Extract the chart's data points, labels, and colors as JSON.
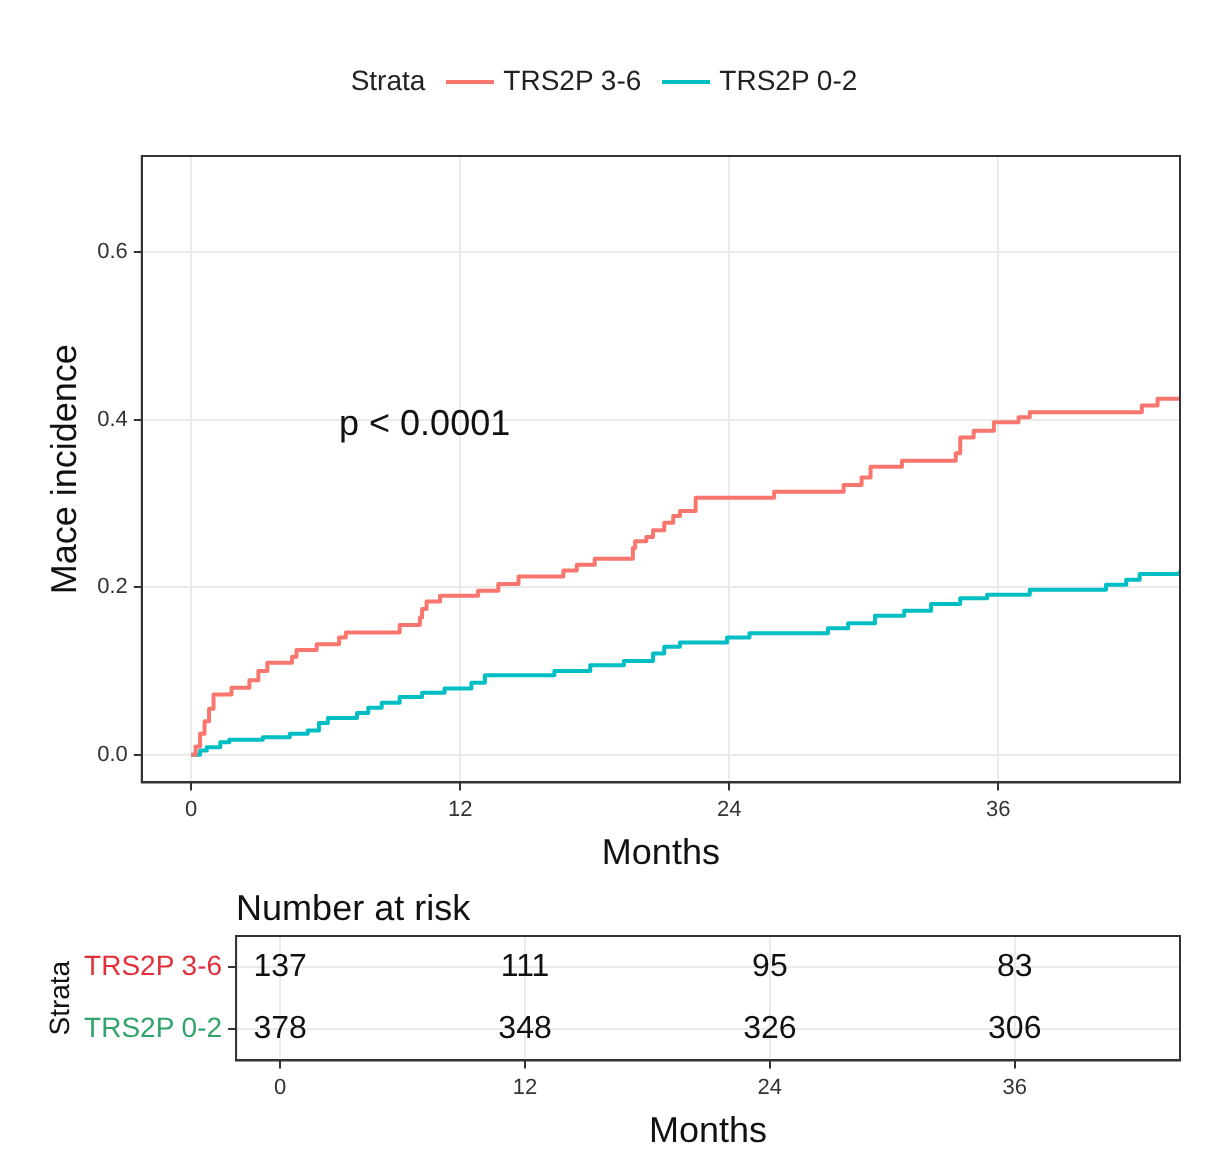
{
  "chart_data": [
    {
      "type": "step",
      "xlabel": "Months",
      "ylabel": "Mace incidence",
      "legend_title": "Strata",
      "legend": "top",
      "grid": true,
      "xlim": [
        -2.2,
        44.1
      ],
      "xticks": [
        0,
        12,
        24,
        36
      ],
      "ylim": [
        -0.033,
        0.715
      ],
      "yticks": [
        {
          "value": 0,
          "label": "0.0"
        },
        {
          "value": 0.2,
          "label": "0.2"
        },
        {
          "value": 0.4,
          "label": "0.4"
        },
        {
          "value": 0.6,
          "label": "0.6"
        }
      ],
      "annotations": [
        "p < 0.0001"
      ],
      "series": [
        {
          "name": "TRS2P 3-6",
          "color": "#f8766d",
          "x": [
            0,
            0.2,
            0.4,
            0.6,
            0.8,
            1.0,
            1.8,
            2.6,
            3.0,
            3.4,
            4.5,
            4.7,
            5.6,
            6.6,
            6.9,
            9.3,
            10.2,
            10.3,
            10.5,
            11.1,
            12.8,
            13.7,
            14.6,
            16.6,
            17.2,
            18.0,
            19.7,
            19.8,
            20.3,
            20.6,
            21.1,
            21.5,
            21.8,
            22.5,
            26.0,
            29.1,
            29.9,
            30.3,
            31.7,
            34.1,
            34.3,
            34.9,
            35.8,
            36.9,
            37.4,
            42.4,
            43.1,
            44.1
          ],
          "values": [
            0,
            0.01,
            0.025,
            0.04,
            0.055,
            0.072,
            0.08,
            0.089,
            0.1,
            0.11,
            0.117,
            0.125,
            0.132,
            0.14,
            0.146,
            0.155,
            0.164,
            0.174,
            0.183,
            0.19,
            0.196,
            0.204,
            0.213,
            0.22,
            0.227,
            0.234,
            0.247,
            0.255,
            0.26,
            0.268,
            0.277,
            0.285,
            0.291,
            0.307,
            0.314,
            0.322,
            0.331,
            0.344,
            0.351,
            0.36,
            0.379,
            0.387,
            0.397,
            0.403,
            0.409,
            0.417,
            0.425,
            0.425
          ]
        },
        {
          "name": "TRS2P 0-2",
          "color": "#00bfc4",
          "x": [
            0,
            0.4,
            0.7,
            1.3,
            1.7,
            3.2,
            4.4,
            5.2,
            5.7,
            6.1,
            7.4,
            7.9,
            8.5,
            9.3,
            10.3,
            11.3,
            12.5,
            13.1,
            16.2,
            17.8,
            19.3,
            20.6,
            21.1,
            21.8,
            23.9,
            24.9,
            28.4,
            29.3,
            30.5,
            31.8,
            33.0,
            34.3,
            35.5,
            37.4,
            40.8,
            41.7,
            42.3,
            44.1
          ],
          "values": [
            0,
            0.005,
            0.009,
            0.015,
            0.018,
            0.021,
            0.025,
            0.029,
            0.038,
            0.044,
            0.05,
            0.056,
            0.062,
            0.069,
            0.074,
            0.079,
            0.086,
            0.095,
            0.1,
            0.107,
            0.112,
            0.121,
            0.129,
            0.134,
            0.14,
            0.145,
            0.151,
            0.157,
            0.166,
            0.172,
            0.18,
            0.187,
            0.191,
            0.197,
            0.203,
            0.209,
            0.216,
            0.22
          ]
        }
      ]
    },
    {
      "type": "heatmap",
      "title": "Number at risk",
      "xlabel": "Months",
      "ylabel": "Strata",
      "grid": true,
      "data_labels": true,
      "categories": [
        "0",
        "12",
        "24",
        "36"
      ],
      "y_categories": [
        "TRS2P 3-6",
        "TRS2P 0-2"
      ],
      "colors": [
        "#e0303a",
        "#31a36b"
      ],
      "cells": [
        [
          137,
          111,
          95,
          83
        ],
        [
          378,
          348,
          326,
          306
        ]
      ]
    }
  ]
}
